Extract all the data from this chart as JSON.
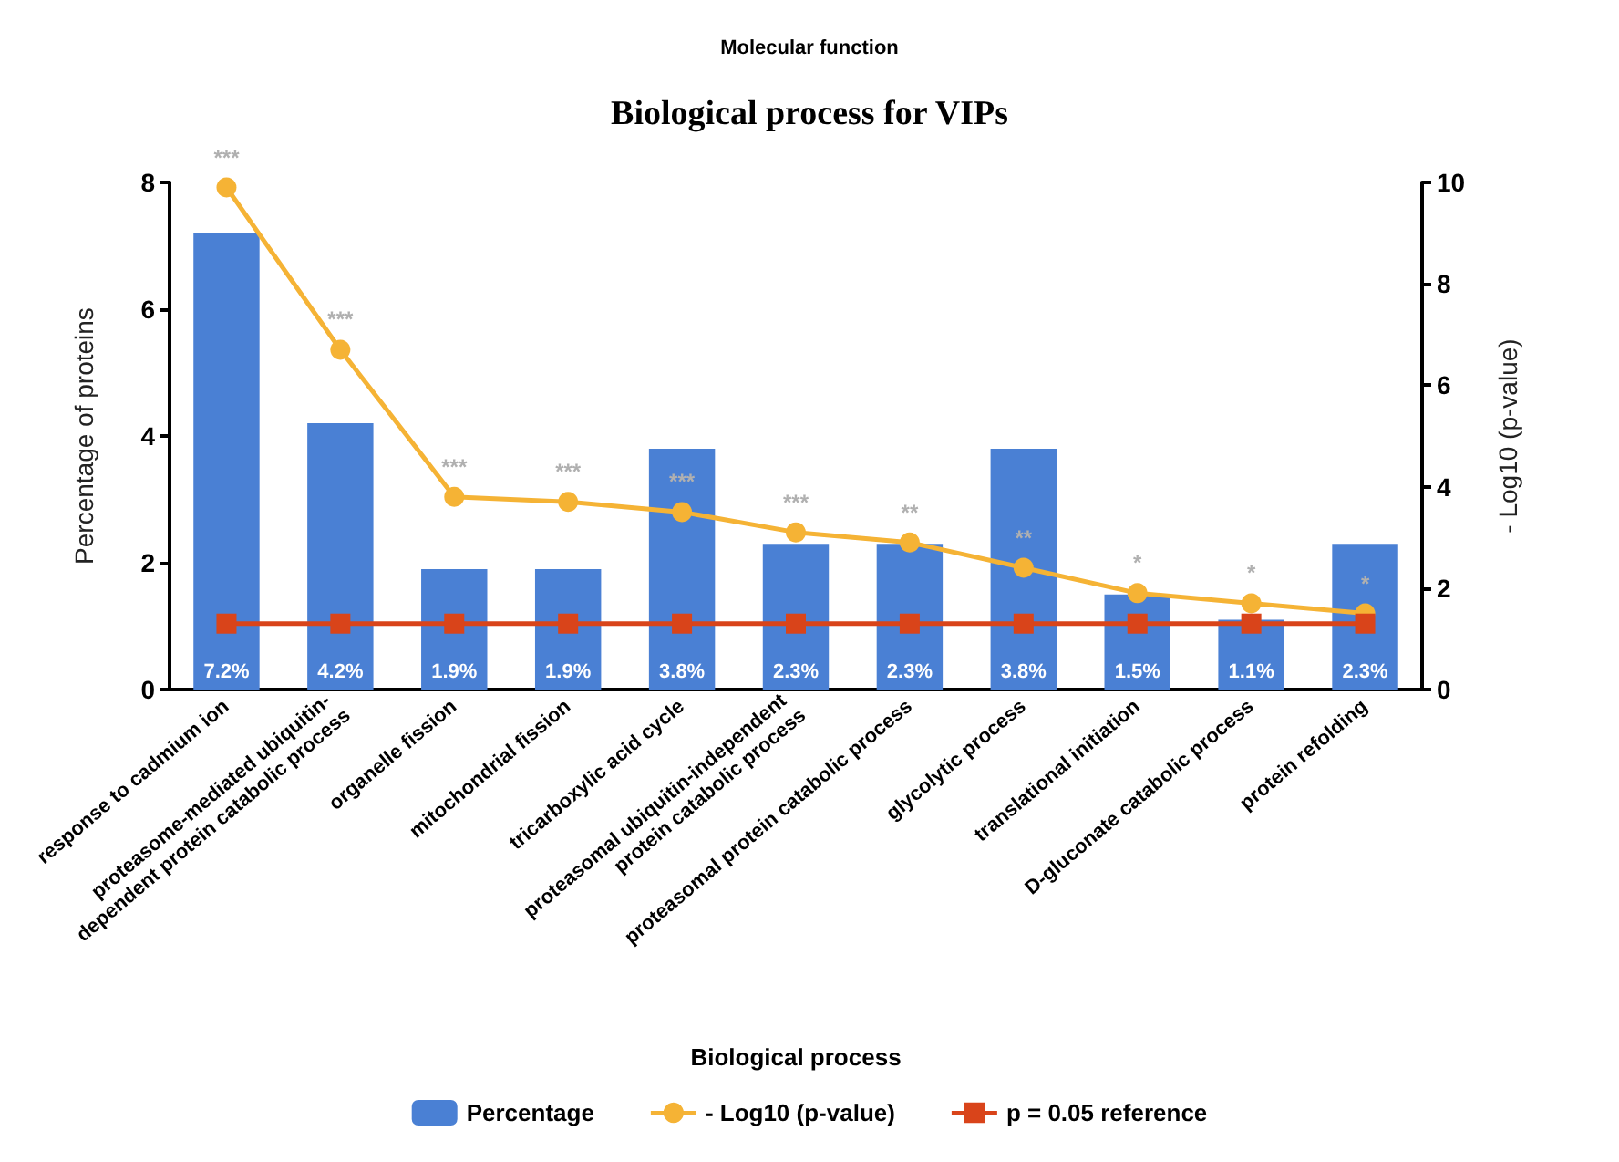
{
  "chart_data": {
    "type": "bar",
    "title": "Biological process for VIPs",
    "xlabel": "Biological process",
    "ylabel": "Percentage of proteins",
    "y2label": "- Log10 (p-value)",
    "annotations": [
      "Molecular function"
    ],
    "categories": [
      "response to cadmium ion",
      "proteasome-mediated ubiquitin- dependent protein catabolic process",
      "organelle fission",
      "mitochondrial fission",
      "tricarboxylic acid cycle",
      "proteasomal ubiquitin-independent protein catabolic process",
      "proteasomal protein catabolic process",
      "glycolytic process",
      "translational initiation",
      "D-gluconate catabolic process",
      "protein refolding"
    ],
    "series": [
      {
        "name": "Percentage",
        "color": "#4a80d4",
        "values": [
          7.2,
          4.2,
          1.9,
          1.9,
          3.8,
          2.3,
          2.3,
          3.8,
          1.5,
          1.1,
          2.3
        ],
        "value_labels": [
          "7.2%",
          "4.2%",
          "1.9%",
          "1.9%",
          "3.8%",
          "2.3%",
          "2.3%",
          "3.8%",
          "1.5%",
          "1.1%",
          "2.3%"
        ]
      },
      {
        "name": "- Log10 (p-value)",
        "type": "line",
        "axis": "y2",
        "color": "#f5b335",
        "marker": "circle",
        "values": [
          9.9,
          6.7,
          3.8,
          3.7,
          3.5,
          3.1,
          2.9,
          2.4,
          1.9,
          1.7,
          1.5
        ],
        "value_labels": [
          "***",
          "***",
          "***",
          "***",
          "***",
          "***",
          "**",
          "**",
          "*",
          "*",
          "*"
        ]
      },
      {
        "name": "p = 0.05 reference",
        "type": "line",
        "axis": "y2",
        "color": "#d9441a",
        "marker": "square",
        "values": [
          1.3,
          1.3,
          1.3,
          1.3,
          1.3,
          1.3,
          1.3,
          1.3,
          1.3,
          1.3,
          1.3
        ]
      }
    ],
    "ylim": [
      0,
      8
    ],
    "yticks": [
      0,
      2,
      4,
      6,
      8
    ],
    "y2lim": [
      0,
      10
    ],
    "y2ticks": [
      0,
      2,
      4,
      6,
      8,
      10
    ],
    "grid": false,
    "legend": "bottom"
  }
}
